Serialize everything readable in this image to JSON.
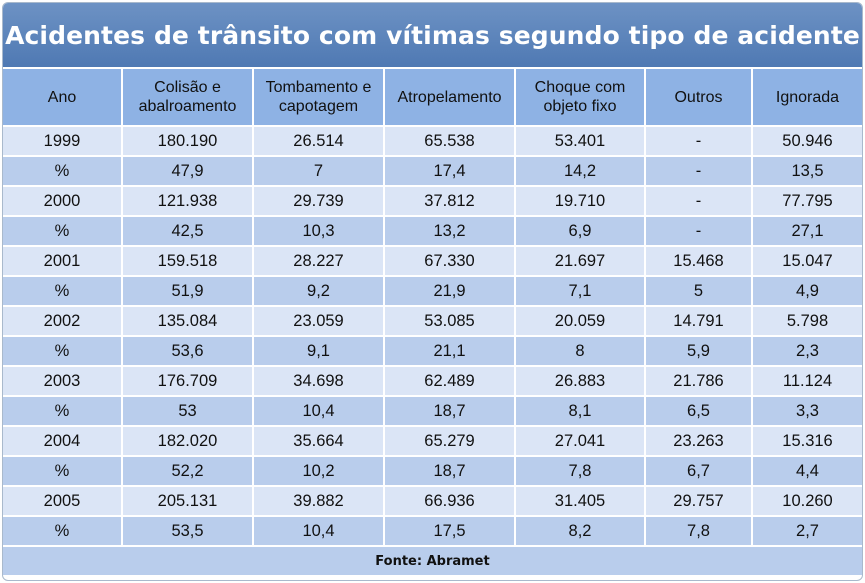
{
  "title": "Acidentes de trânsito com vítimas segundo tipo de acidente",
  "footer": "Fonte: Abramet",
  "colors": {
    "title_bg": "#5a84bc",
    "header_bg": "#8eb2e4",
    "row_light": "#dbe5f6",
    "row_dark": "#b9cdec"
  },
  "chart_data": {
    "type": "table",
    "title": "Acidentes de trânsito com vítimas segundo tipo de acidente",
    "columns": [
      "Ano",
      "Colisão e abalroamento",
      "Tombamento e capotagem",
      "Atropelamento",
      "Choque com objeto fixo",
      "Outros",
      "Ignorada"
    ],
    "rows": [
      [
        "1999",
        "180.190",
        "26.514",
        "65.538",
        "53.401",
        "-",
        "50.946"
      ],
      [
        "%",
        "47,9",
        "7",
        "17,4",
        "14,2",
        "-",
        "13,5"
      ],
      [
        "2000",
        "121.938",
        "29.739",
        "37.812",
        "19.710",
        "-",
        "77.795"
      ],
      [
        "%",
        "42,5",
        "10,3",
        "13,2",
        "6,9",
        "-",
        "27,1"
      ],
      [
        "2001",
        "159.518",
        "28.227",
        "67.330",
        "21.697",
        "15.468",
        "15.047"
      ],
      [
        "%",
        "51,9",
        "9,2",
        "21,9",
        "7,1",
        "5",
        "4,9"
      ],
      [
        "2002",
        "135.084",
        "23.059",
        "53.085",
        "20.059",
        "14.791",
        "5.798"
      ],
      [
        "%",
        "53,6",
        "9,1",
        "21,1",
        "8",
        "5,9",
        "2,3"
      ],
      [
        "2003",
        "176.709",
        "34.698",
        "62.489",
        "26.883",
        "21.786",
        "11.124"
      ],
      [
        "%",
        "53",
        "10,4",
        "18,7",
        "8,1",
        "6,5",
        "3,3"
      ],
      [
        "2004",
        "182.020",
        "35.664",
        "65.279",
        "27.041",
        "23.263",
        "15.316"
      ],
      [
        "%",
        "52,2",
        "10,2",
        "18,7",
        "7,8",
        "6,7",
        "4,4"
      ],
      [
        "2005",
        "205.131",
        "39.882",
        "66.936",
        "31.405",
        "29.757",
        "10.260"
      ],
      [
        "%",
        "53,5",
        "10,4",
        "17,5",
        "8,2",
        "7,8",
        "2,7"
      ]
    ],
    "source": "Fonte: Abramet"
  }
}
